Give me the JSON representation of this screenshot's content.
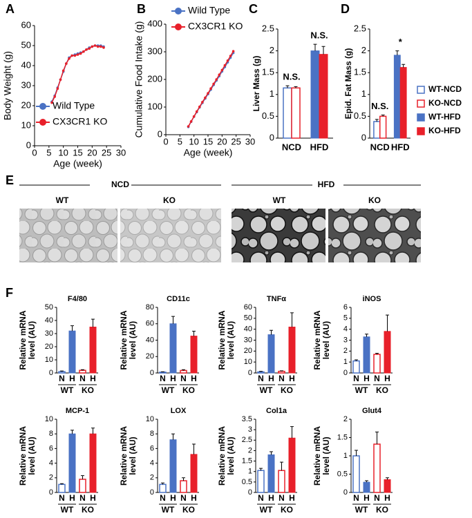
{
  "chart_data": [
    {
      "type": "line",
      "panel": "A",
      "xlabel": "Age (week)",
      "ylabel": "Body Weight (g)",
      "x": [
        6,
        7,
        8,
        9,
        10,
        11,
        12,
        13,
        14,
        15,
        16,
        17,
        18,
        19,
        20,
        21,
        22,
        23,
        24
      ],
      "series": [
        {
          "name": "Wild Type",
          "color": "#4a72c4",
          "values": [
            22,
            25,
            29,
            33,
            37,
            41,
            44,
            45,
            45.5,
            46,
            46.5,
            47,
            48,
            49,
            49.5,
            50,
            50,
            50,
            49.5
          ]
        },
        {
          "name": "CX3CR1 KO",
          "color": "#e8202a",
          "values": [
            21.5,
            24.5,
            28.5,
            33,
            37.5,
            41,
            43.5,
            45,
            45,
            45.5,
            46,
            47,
            48,
            48.5,
            49.5,
            50,
            49.5,
            49.5,
            49
          ]
        }
      ],
      "xlim": [
        0,
        30
      ],
      "xticks": [
        0,
        5,
        10,
        15,
        20,
        25,
        30
      ],
      "ylim": [
        0,
        60
      ],
      "yticks": [
        0,
        10,
        20,
        30,
        40,
        50,
        60
      ],
      "legend": "lower right"
    },
    {
      "type": "line",
      "panel": "B",
      "xlabel": "Age (week)",
      "ylabel": "Cumulative Food Intake (g)",
      "x": [
        8,
        9,
        10,
        11,
        12,
        13,
        14,
        15,
        16,
        17,
        18,
        19,
        20,
        21,
        22,
        23,
        24
      ],
      "series": [
        {
          "name": "Wild Type",
          "color": "#4a72c4",
          "values": [
            28,
            47,
            65,
            82,
            99,
            115,
            131,
            147,
            163,
            180,
            196,
            212,
            229,
            245,
            262,
            279,
            296
          ]
        },
        {
          "name": "CX3CR1 KO",
          "color": "#e8202a",
          "values": [
            30,
            48,
            66,
            84,
            101,
            118,
            134,
            150,
            167,
            184,
            200,
            217,
            234,
            251,
            268,
            285,
            302
          ]
        }
      ],
      "xlim": [
        0,
        30
      ],
      "xticks": [
        0,
        5,
        10,
        15,
        20,
        25,
        30
      ],
      "ylim": [
        0,
        400
      ],
      "yticks": [
        0,
        100,
        200,
        300,
        400
      ],
      "legend": "upper left"
    },
    {
      "type": "bar",
      "panel": "C",
      "ylabel": "Liver Mass (g)",
      "categories": [
        "NCD",
        "HFD"
      ],
      "series": [
        {
          "name": "WT-NCD",
          "color": "#4a72c4",
          "fill": "open",
          "values": [
            1.15,
            null
          ],
          "errors": [
            0.05,
            null
          ]
        },
        {
          "name": "KO-NCD",
          "color": "#e8202a",
          "fill": "open",
          "values": [
            1.15,
            null
          ],
          "errors": [
            0.03,
            null
          ]
        },
        {
          "name": "WT-HFD",
          "color": "#4a72c4",
          "fill": "filled",
          "values": [
            null,
            2.0
          ],
          "errors": [
            null,
            0.15
          ]
        },
        {
          "name": "KO-HFD",
          "color": "#e8202a",
          "fill": "filled",
          "values": [
            null,
            1.92
          ],
          "errors": [
            null,
            0.18
          ]
        }
      ],
      "annotations": [
        "N.S.",
        "N.S."
      ],
      "ylim": [
        0,
        2.5
      ],
      "yticks": [
        0,
        0.5,
        1,
        1.5,
        2,
        2.5
      ]
    },
    {
      "type": "bar",
      "panel": "D",
      "ylabel": "Epid. Fat Mass (g)",
      "categories": [
        "NCD",
        "HFD"
      ],
      "series": [
        {
          "name": "WT-NCD",
          "color": "#4a72c4",
          "fill": "open",
          "values": [
            0.38,
            null
          ],
          "errors": [
            0.05,
            null
          ]
        },
        {
          "name": "KO-NCD",
          "color": "#e8202a",
          "fill": "open",
          "values": [
            0.5,
            null
          ],
          "errors": [
            0.03,
            null
          ]
        },
        {
          "name": "WT-HFD",
          "color": "#4a72c4",
          "fill": "filled",
          "values": [
            null,
            1.9
          ],
          "errors": [
            null,
            0.1
          ]
        },
        {
          "name": "KO-HFD",
          "color": "#e8202a",
          "fill": "filled",
          "values": [
            null,
            1.62
          ],
          "errors": [
            null,
            0.07
          ]
        }
      ],
      "annotations": [
        "N.S.",
        "*"
      ],
      "ylim": [
        0,
        2.5
      ],
      "yticks": [
        0,
        0.5,
        1,
        1.5,
        2,
        2.5
      ],
      "legend": "right"
    },
    {
      "type": "bar",
      "title": "F4/80",
      "ylabel": [
        "Relative mRNA",
        "level (AU)"
      ],
      "categories": [
        "N",
        "H",
        "N",
        "H"
      ],
      "groups": [
        "WT",
        "KO"
      ],
      "colors": [
        "#4a72c4",
        "#4a72c4",
        "#e8202a",
        "#e8202a"
      ],
      "fills": [
        "open",
        "filled",
        "open",
        "filled"
      ],
      "values": [
        1,
        32,
        2,
        35
      ],
      "errors": [
        0.5,
        4,
        0.5,
        6
      ],
      "ylim": [
        0,
        50
      ],
      "yticks": [
        0,
        10,
        20,
        30,
        40,
        50
      ]
    },
    {
      "type": "bar",
      "title": "CD11c",
      "ylabel": [
        "Relative mRNA",
        "level (AU)"
      ],
      "categories": [
        "N",
        "H",
        "N",
        "H"
      ],
      "groups": [
        "WT",
        "KO"
      ],
      "colors": [
        "#4a72c4",
        "#4a72c4",
        "#e8202a",
        "#e8202a"
      ],
      "fills": [
        "open",
        "filled",
        "open",
        "filled"
      ],
      "values": [
        1,
        60,
        3,
        45
      ],
      "errors": [
        0.5,
        9,
        1,
        6
      ],
      "ylim": [
        0,
        80
      ],
      "yticks": [
        0,
        20,
        40,
        60,
        80
      ]
    },
    {
      "type": "bar",
      "title": "TNFα",
      "ylabel": [
        "Relative mRNA",
        "level (AU)"
      ],
      "categories": [
        "N",
        "H",
        "N",
        "H"
      ],
      "groups": [
        "WT",
        "KO"
      ],
      "colors": [
        "#4a72c4",
        "#4a72c4",
        "#e8202a",
        "#e8202a"
      ],
      "fills": [
        "open",
        "filled",
        "open",
        "filled"
      ],
      "values": [
        1,
        35,
        1.5,
        42
      ],
      "errors": [
        0.5,
        4,
        0.5,
        13
      ],
      "ylim": [
        0,
        60
      ],
      "yticks": [
        0,
        10,
        20,
        30,
        40,
        50,
        60
      ]
    },
    {
      "type": "bar",
      "title": "iNOS",
      "ylabel": [
        "Relative mRNA",
        "level (AU)"
      ],
      "categories": [
        "N",
        "H",
        "N",
        "H"
      ],
      "groups": [
        "WT",
        "KO"
      ],
      "colors": [
        "#4a72c4",
        "#4a72c4",
        "#e8202a",
        "#e8202a"
      ],
      "fills": [
        "open",
        "filled",
        "open",
        "filled"
      ],
      "values": [
        1.1,
        3.3,
        1.7,
        3.8
      ],
      "errors": [
        0.1,
        0.25,
        0.1,
        1.5
      ],
      "ylim": [
        0,
        6
      ],
      "yticks": [
        0,
        1,
        2,
        3,
        4,
        5,
        6
      ]
    },
    {
      "type": "bar",
      "title": "MCP-1",
      "ylabel": [
        "Relative mRNA",
        "level (AU)"
      ],
      "categories": [
        "N",
        "H",
        "N",
        "H"
      ],
      "groups": [
        "WT",
        "KO"
      ],
      "colors": [
        "#4a72c4",
        "#4a72c4",
        "#e8202a",
        "#e8202a"
      ],
      "fills": [
        "open",
        "filled",
        "open",
        "filled"
      ],
      "values": [
        1.1,
        8,
        1.8,
        8
      ],
      "errors": [
        0.1,
        0.5,
        0.5,
        0.8
      ],
      "ylim": [
        0,
        10
      ],
      "yticks": [
        0,
        2,
        4,
        6,
        8,
        10
      ]
    },
    {
      "type": "bar",
      "title": "LOX",
      "ylabel": [
        "Relative mRNA",
        "level (AU)"
      ],
      "categories": [
        "N",
        "H",
        "N",
        "H"
      ],
      "groups": [
        "WT",
        "KO"
      ],
      "colors": [
        "#4a72c4",
        "#4a72c4",
        "#e8202a",
        "#e8202a"
      ],
      "fills": [
        "open",
        "filled",
        "open",
        "filled"
      ],
      "values": [
        1.1,
        7.2,
        1.6,
        5.2
      ],
      "errors": [
        0.2,
        0.8,
        0.4,
        1.4
      ],
      "ylim": [
        0,
        10
      ],
      "yticks": [
        0,
        2,
        4,
        6,
        8,
        10
      ]
    },
    {
      "type": "bar",
      "title": "Col1a",
      "ylabel": [
        "Relative mRNA",
        "level (AU)"
      ],
      "categories": [
        "N",
        "H",
        "N",
        "H"
      ],
      "groups": [
        "WT",
        "KO"
      ],
      "colors": [
        "#4a72c4",
        "#4a72c4",
        "#e8202a",
        "#e8202a"
      ],
      "fills": [
        "open",
        "filled",
        "open",
        "filled"
      ],
      "values": [
        1.05,
        1.8,
        1.05,
        2.6
      ],
      "errors": [
        0.1,
        0.15,
        0.4,
        0.55
      ],
      "ylim": [
        0,
        3.5
      ],
      "yticks": [
        0,
        0.5,
        1,
        1.5,
        2,
        2.5,
        3,
        3.5
      ]
    },
    {
      "type": "bar",
      "title": "Glut4",
      "ylabel": [
        "Relative mRNA",
        "level (AU)"
      ],
      "categories": [
        "N",
        "H",
        "N",
        "H"
      ],
      "groups": [
        "WT",
        "KO"
      ],
      "colors": [
        "#4a72c4",
        "#4a72c4",
        "#e8202a",
        "#e8202a"
      ],
      "fills": [
        "open",
        "filled",
        "open",
        "filled"
      ],
      "values": [
        1.0,
        0.28,
        1.32,
        0.35
      ],
      "errors": [
        0.15,
        0.04,
        0.33,
        0.05
      ],
      "ylim": [
        0,
        2
      ],
      "yticks": [
        0,
        0.5,
        1,
        1.5,
        2
      ]
    }
  ],
  "histology": {
    "panel": "E",
    "groups": [
      {
        "label": "NCD",
        "columns": [
          "WT",
          "KO"
        ]
      },
      {
        "label": "HFD",
        "columns": [
          "WT",
          "KO"
        ]
      }
    ]
  },
  "panel_f": "F"
}
